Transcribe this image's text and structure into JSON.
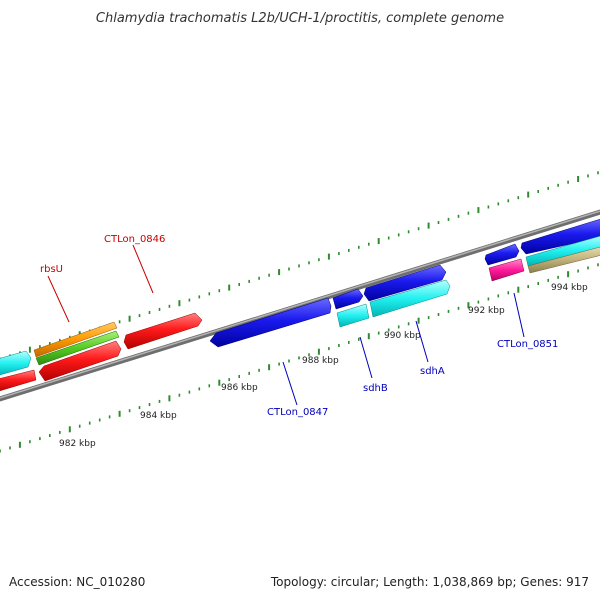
{
  "title": "Chlamydia trachomatis L2b/UCH-1/proctitis, complete genome",
  "footer": {
    "accession": "Accession: NC_010280",
    "summary": "Topology: circular; Length: 1,038,869 bp; Genes: 917"
  },
  "colors": {
    "backbone": "#8a8a8a",
    "tick": "#2e8b2e",
    "label_red": "#cc0000",
    "label_blue": "#0000bb"
  },
  "scale": {
    "tick_labels": [
      "982 kbp",
      "984 kbp",
      "986 kbp",
      "988 kbp",
      "990 kbp",
      "992 kbp",
      "994 kbp"
    ]
  },
  "gene_labels": [
    {
      "text": "rbsU",
      "color": "#cc0000"
    },
    {
      "text": "CTLon_0846",
      "color": "#cc0000"
    },
    {
      "text": "CTLon_0847",
      "color": "#0000bb"
    },
    {
      "text": "sdhB",
      "color": "#0000bb"
    },
    {
      "text": "sdhA",
      "color": "#0000bb"
    },
    {
      "text": "CTLon_0851",
      "color": "#0000bb"
    }
  ]
}
